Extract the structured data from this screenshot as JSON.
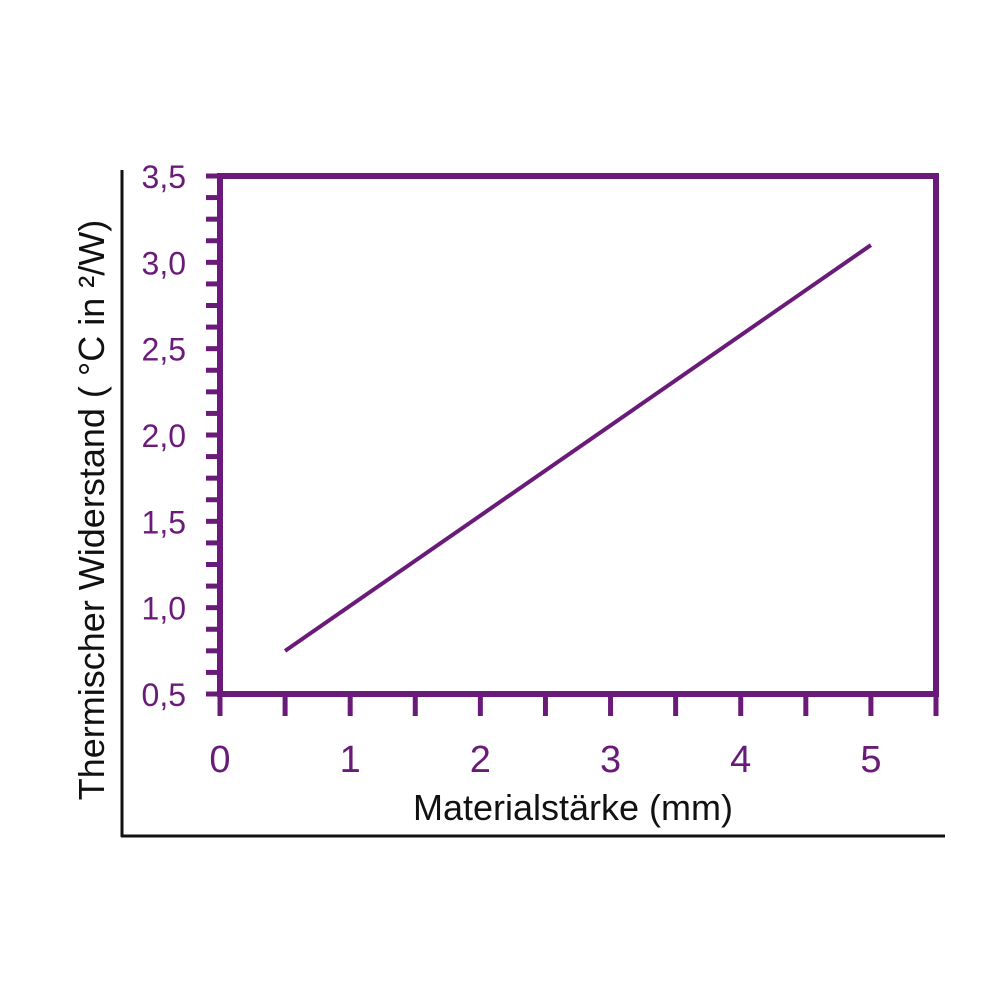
{
  "chart_data": {
    "type": "line",
    "xlabel": "Materialstärke (mm)",
    "ylabel": "Thermischer Widerstand ( °C in ²/W)",
    "xlim": [
      0,
      5.5
    ],
    "ylim": [
      0.5,
      3.5
    ],
    "x_ticks": [
      0,
      1,
      2,
      3,
      4,
      5
    ],
    "x_tick_labels": [
      "0",
      "1",
      "2",
      "3",
      "4",
      "5"
    ],
    "y_ticks": [
      0.5,
      1.0,
      1.5,
      2.0,
      2.5,
      3.0,
      3.5
    ],
    "y_tick_labels": [
      "0,5",
      "1,0",
      "1,5",
      "2,0",
      "2,5",
      "3,0",
      "3,5"
    ],
    "grid": false,
    "series": [
      {
        "x": [
          0.5,
          5.0
        ],
        "y": [
          0.75,
          3.1
        ]
      }
    ]
  },
  "colors": {
    "accent": "#6a1b7a",
    "axis_outer": "#111111",
    "text_dark": "#111111"
  }
}
